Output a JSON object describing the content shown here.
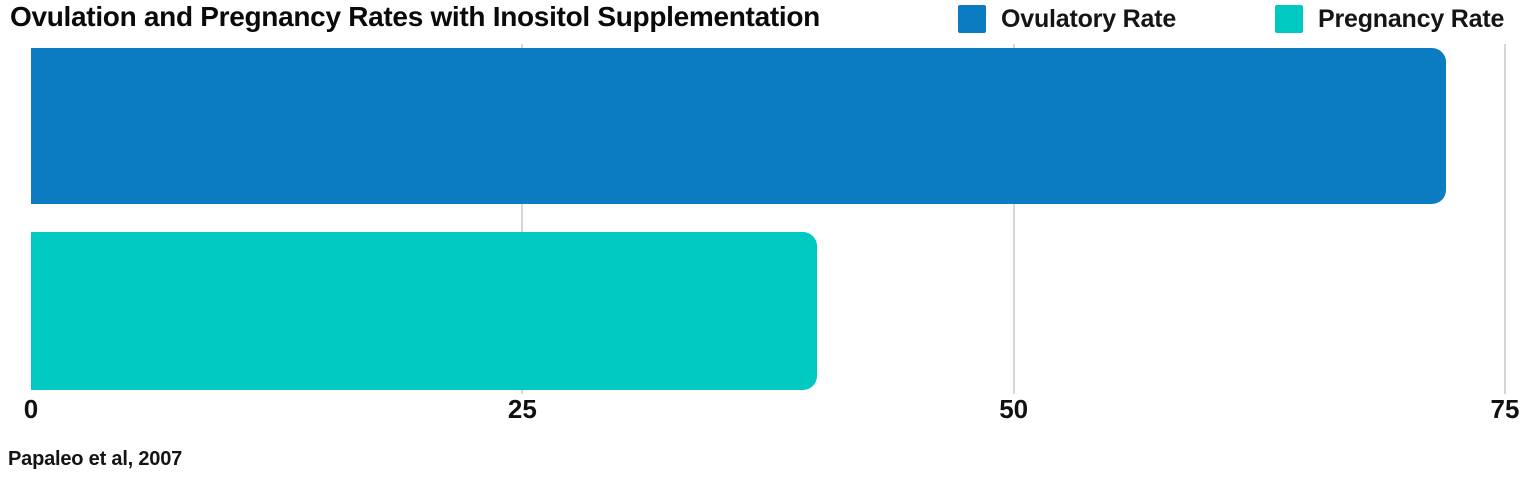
{
  "chart_data": {
    "type": "bar",
    "orientation": "horizontal",
    "title": "Ovulation and Pregnancy Rates with Inositol Supplementation",
    "series": [
      {
        "name": "Ovulatory Rate",
        "value": 72,
        "color": "#0b7cc1"
      },
      {
        "name": "Pregnancy Rate",
        "value": 40,
        "color": "#00c9c2"
      }
    ],
    "xlim": [
      0,
      75
    ],
    "xticks": [
      0,
      25,
      50,
      75
    ],
    "grid": "vertical light gray lines at x ticks",
    "legend_position": "top-right",
    "annotation": "Papaleo et al, 2007",
    "colors": {
      "ovulatory": "#0b7cc1",
      "pregnancy": "#00c9c2",
      "gridline": "#d6d6d6",
      "text": "#0a0a0a"
    }
  }
}
